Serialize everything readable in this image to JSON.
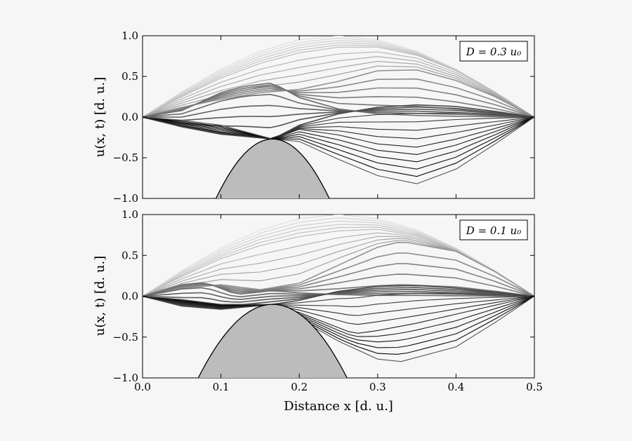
{
  "colors": {
    "background": "#f6f6f6",
    "axes_face": "#f6f6f6",
    "obstacle_fill": "#bcbcbc",
    "line_dark": "#000000",
    "line_light": "#dddddd"
  },
  "chart_data": [
    {
      "type": "line",
      "panel": "top",
      "legend_text": "D = 0.3 u₀",
      "legend_position": "top-right",
      "ylabel": "u(x, t) [d. u.]",
      "xlabel": "",
      "xlim": [
        0.0,
        0.5
      ],
      "ylim": [
        -1.0,
        1.0
      ],
      "xticks": [
        0.0,
        0.1,
        0.2,
        0.3,
        0.4,
        0.5
      ],
      "yticks": [
        "1.0",
        "0.5",
        "0.0",
        "−0.5",
        "−1.0"
      ],
      "ytick_values": [
        1.0,
        0.5,
        0.0,
        -0.5,
        -1.0
      ],
      "obstacle": {
        "center_x": 0.166,
        "peak_y": -0.27,
        "curvature": 140
      },
      "series_description": "vibrating string snapshots, from initial sine to fragmented shapes near obstacle",
      "series": [
        {
          "name": "t0",
          "x": [
            0,
            0.05,
            0.1,
            0.15,
            0.2,
            0.25,
            0.3,
            0.35,
            0.4,
            0.45,
            0.5
          ],
          "values": [
            0,
            0.31,
            0.59,
            0.81,
            0.95,
            1.0,
            0.95,
            0.81,
            0.59,
            0.31,
            0
          ]
        },
        {
          "name": "t1",
          "x": [
            0,
            0.05,
            0.1,
            0.15,
            0.2,
            0.25,
            0.3,
            0.35,
            0.4,
            0.45,
            0.5
          ],
          "values": [
            0,
            0.25,
            0.48,
            0.66,
            0.79,
            0.86,
            0.86,
            0.76,
            0.57,
            0.3,
            0
          ]
        },
        {
          "name": "t2",
          "x": [
            0,
            0.05,
            0.1,
            0.15,
            0.2,
            0.25,
            0.3,
            0.35,
            0.4,
            0.45,
            0.5
          ],
          "values": [
            0,
            0.12,
            0.22,
            0.3,
            0.34,
            0.44,
            0.57,
            0.58,
            0.45,
            0.25,
            0
          ]
        },
        {
          "name": "t3",
          "x": [
            0,
            0.05,
            0.1,
            0.13,
            0.166,
            0.2,
            0.25,
            0.3,
            0.35,
            0.4,
            0.45,
            0.5
          ],
          "values": [
            0,
            0.08,
            0.3,
            0.38,
            0.42,
            0.24,
            0.1,
            0.04,
            0.02,
            0.01,
            0.005,
            0
          ]
        },
        {
          "name": "t4",
          "x": [
            0,
            0.05,
            0.1,
            0.166,
            0.2,
            0.25,
            0.3,
            0.35,
            0.4,
            0.45,
            0.5
          ],
          "values": [
            0,
            -0.12,
            -0.21,
            -0.27,
            -0.1,
            0.04,
            0.12,
            0.15,
            0.13,
            0.07,
            0
          ]
        },
        {
          "name": "t5",
          "x": [
            0,
            0.05,
            0.1,
            0.166,
            0.2,
            0.25,
            0.3,
            0.35,
            0.4,
            0.45,
            0.5
          ],
          "values": [
            0,
            -0.1,
            -0.18,
            -0.27,
            -0.15,
            -0.22,
            -0.33,
            -0.37,
            -0.27,
            -0.14,
            0
          ]
        },
        {
          "name": "t6",
          "x": [
            0,
            0.05,
            0.1,
            0.166,
            0.2,
            0.25,
            0.3,
            0.35,
            0.4,
            0.45,
            0.5
          ],
          "values": [
            0,
            -0.04,
            -0.1,
            -0.27,
            -0.3,
            -0.52,
            -0.72,
            -0.82,
            -0.64,
            -0.33,
            0
          ]
        }
      ]
    },
    {
      "type": "line",
      "panel": "bottom",
      "legend_text": "D = 0.1 u₀",
      "legend_position": "top-right",
      "ylabel": "u(x, t) [d. u.]",
      "xlabel": "Distance x [d. u.]",
      "xlim": [
        0.0,
        0.5
      ],
      "ylim": [
        -1.0,
        1.0
      ],
      "xticks": [
        "0.0",
        "0.1",
        "0.2",
        "0.3",
        "0.4",
        "0.5"
      ],
      "xtick_values": [
        0.0,
        0.1,
        0.2,
        0.3,
        0.4,
        0.5
      ],
      "yticks": [
        "1.0",
        "0.5",
        "0.0",
        "−0.5",
        "−1.0"
      ],
      "ytick_values": [
        1.0,
        0.5,
        0.0,
        -0.5,
        -1.0
      ],
      "obstacle": {
        "center_x": 0.166,
        "peak_y": -0.1,
        "curvature": 100
      },
      "series": [
        {
          "name": "t0",
          "x": [
            0,
            0.05,
            0.1,
            0.15,
            0.2,
            0.25,
            0.3,
            0.35,
            0.4,
            0.45,
            0.5
          ],
          "values": [
            0,
            0.31,
            0.59,
            0.81,
            0.95,
            1.0,
            0.95,
            0.81,
            0.59,
            0.31,
            0
          ]
        },
        {
          "name": "t1",
          "x": [
            0,
            0.05,
            0.1,
            0.15,
            0.2,
            0.25,
            0.3,
            0.35,
            0.4,
            0.45,
            0.5
          ],
          "values": [
            0,
            0.24,
            0.46,
            0.62,
            0.73,
            0.8,
            0.82,
            0.74,
            0.56,
            0.3,
            0
          ]
        },
        {
          "name": "t2",
          "x": [
            0,
            0.05,
            0.1,
            0.15,
            0.2,
            0.25,
            0.3,
            0.33,
            0.4,
            0.45,
            0.5
          ],
          "values": [
            0,
            0.1,
            0.14,
            0.08,
            0.16,
            0.38,
            0.6,
            0.67,
            0.55,
            0.3,
            0
          ]
        },
        {
          "name": "t3",
          "x": [
            0,
            0.05,
            0.08,
            0.12,
            0.166,
            0.2,
            0.25,
            0.3,
            0.35,
            0.4,
            0.45,
            0.5
          ],
          "values": [
            0,
            0.14,
            0.17,
            0.02,
            0.07,
            0.04,
            0.02,
            0.01,
            0.01,
            0.005,
            0.002,
            0
          ]
        },
        {
          "name": "t4",
          "x": [
            0,
            0.05,
            0.1,
            0.166,
            0.2,
            0.25,
            0.3,
            0.35,
            0.4,
            0.45,
            0.5
          ],
          "values": [
            0,
            -0.12,
            -0.16,
            -0.1,
            -0.05,
            0.06,
            0.12,
            0.13,
            0.1,
            0.05,
            0
          ]
        },
        {
          "name": "t5",
          "x": [
            0,
            0.05,
            0.1,
            0.166,
            0.2,
            0.27,
            0.3,
            0.35,
            0.4,
            0.45,
            0.5
          ],
          "values": [
            0,
            -0.08,
            -0.14,
            -0.1,
            -0.2,
            -0.46,
            -0.42,
            -0.33,
            -0.22,
            -0.11,
            0
          ]
        },
        {
          "name": "t6",
          "x": [
            0,
            0.05,
            0.1,
            0.166,
            0.2,
            0.25,
            0.3,
            0.33,
            0.4,
            0.45,
            0.5
          ],
          "values": [
            0,
            -0.04,
            -0.1,
            -0.1,
            -0.28,
            -0.55,
            -0.77,
            -0.8,
            -0.62,
            -0.32,
            0
          ]
        }
      ]
    }
  ]
}
